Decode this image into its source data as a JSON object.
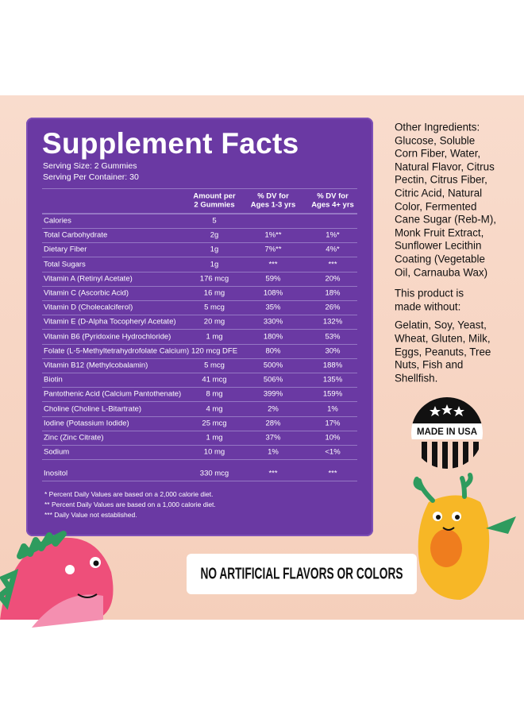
{
  "panel": {
    "title": "Supplement Facts",
    "serving_size": "Serving Size: 2 Gummies",
    "servings": "Serving Per Container: 30"
  },
  "table": {
    "header": [
      [
        "Amount per",
        "2 Gummies"
      ],
      [
        "% DV for",
        "Ages 1-3 yrs"
      ],
      [
        "% DV for",
        "Ages 4+ yrs"
      ]
    ],
    "rows": [
      [
        "Calories",
        "5",
        "",
        ""
      ],
      [
        "Total Carbohydrate",
        "2g",
        "1%**",
        "1%*"
      ],
      [
        "Dietary Fiber",
        "1g",
        "7%**",
        "4%*"
      ],
      [
        "Total Sugars",
        "1g",
        "***",
        "***"
      ],
      [
        "Vitamin A (Retinyl Acetate)",
        "176 mcg",
        "59%",
        "20%"
      ],
      [
        "Vitamin C (Ascorbic Acid)",
        "16 mg",
        "108%",
        "18%"
      ],
      [
        "Vitamin D (Cholecalciferol)",
        "5 mcg",
        "35%",
        "26%"
      ],
      [
        "Vitamin E (D-Alpha Tocopheryl Acetate)",
        "20 mg",
        "330%",
        "132%"
      ],
      [
        "Vitamin B6 (Pyridoxine Hydrochloride)",
        "1 mg",
        "180%",
        "53%"
      ],
      [
        "Folate (L-5-Methyltetrahydrofolate Calcium)",
        "120 mcg DFE",
        "80%",
        "30%"
      ],
      [
        "Vitamin B12 (Methylcobalamin)",
        "5 mcg",
        "500%",
        "188%"
      ],
      [
        "Biotin",
        "41 mcg",
        "506%",
        "135%"
      ],
      [
        "Pantothenic Acid (Calcium Pantothenate)",
        "8 mg",
        "399%",
        "159%"
      ],
      [
        "Choline (Choline L-Bitartrate)",
        "4 mg",
        "2%",
        "1%"
      ],
      [
        "Iodine (Potassium Iodide)",
        "25 mcg",
        "28%",
        "17%"
      ],
      [
        "Zinc (Zinc Citrate)",
        "1 mg",
        "37%",
        "10%"
      ],
      [
        "Sodium",
        "10 mg",
        "1%",
        "<1%"
      ],
      [
        "Inositol",
        "330 mcg",
        "***",
        "***"
      ]
    ],
    "footnotes": [
      "*  Percent Daily Values are based on a 2,000 calorie diet.",
      "**  Percent Daily Values are based on a 1,000 calorie diet.",
      "***  Daily Value not established."
    ]
  },
  "ingredients": [
    "Other Ingredients:",
    "Glucose,  Soluble",
    "Corn Fiber, Water,",
    "Natural Flavor, Citrus",
    "Pectin, Citrus Fiber,",
    "Citric Acid, Natural",
    "Color, Fermented",
    "Cane Sugar (Reb-M),",
    "Monk Fruit Extract,",
    "Sunflower Lecithin",
    "Coating (Vegetable",
    "Oil, Carnauba Wax)"
  ],
  "made_without_heading": [
    "This product is",
    "made without:"
  ],
  "allergens": [
    "Gelatin, Soy, Yeast,",
    "Wheat, Gluten, Milk,",
    "Eggs, Peanuts, Tree",
    "Nuts, Fish and",
    "Shellfish."
  ],
  "badge": "MADE IN USA",
  "banner": "NO ARTIFICIAL FLAVORS OR COLORS"
}
